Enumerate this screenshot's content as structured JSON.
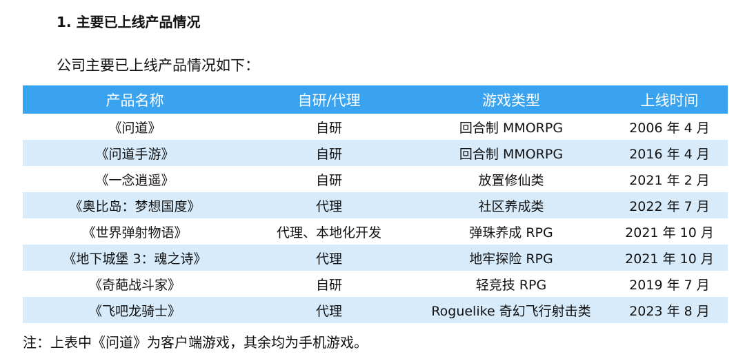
{
  "section_heading": "1. 主要已上线产品情况",
  "intro_text": "公司主要已上线产品情况如下：",
  "table": {
    "headers": [
      "产品名称",
      "自研/代理",
      "游戏类型",
      "上线时间"
    ],
    "rows": [
      [
        "《问道》",
        "自研",
        "回合制 MMORPG",
        "2006 年 4 月"
      ],
      [
        "《问道手游》",
        "自研",
        "回合制 MMORPG",
        "2016 年 4 月"
      ],
      [
        "《一念逍遥》",
        "自研",
        "放置修仙类",
        "2021 年 2 月"
      ],
      [
        "《奥比岛：梦想国度》",
        "代理",
        "社区养成类",
        "2022 年 7 月"
      ],
      [
        "《世界弹射物语》",
        "代理、本地化开发",
        "弹珠养成 RPG",
        "2021 年 10 月"
      ],
      [
        "《地下城堡 3：魂之诗》",
        "代理",
        "地牢探险 RPG",
        "2021 年 10 月"
      ],
      [
        "《奇葩战斗家》",
        "自研",
        "轻竞技 RPG",
        "2019 年 7 月"
      ],
      [
        "《飞吧龙骑士》",
        "代理",
        "Roguelike 奇幻飞行射击类",
        "2023 年 8 月"
      ]
    ]
  },
  "note": "注：上表中《问道》为客户端游戏，其余均为手机游戏。",
  "colors": {
    "header_bg": "#3aa3f0",
    "stripe_bg": "#d7ebfb"
  }
}
